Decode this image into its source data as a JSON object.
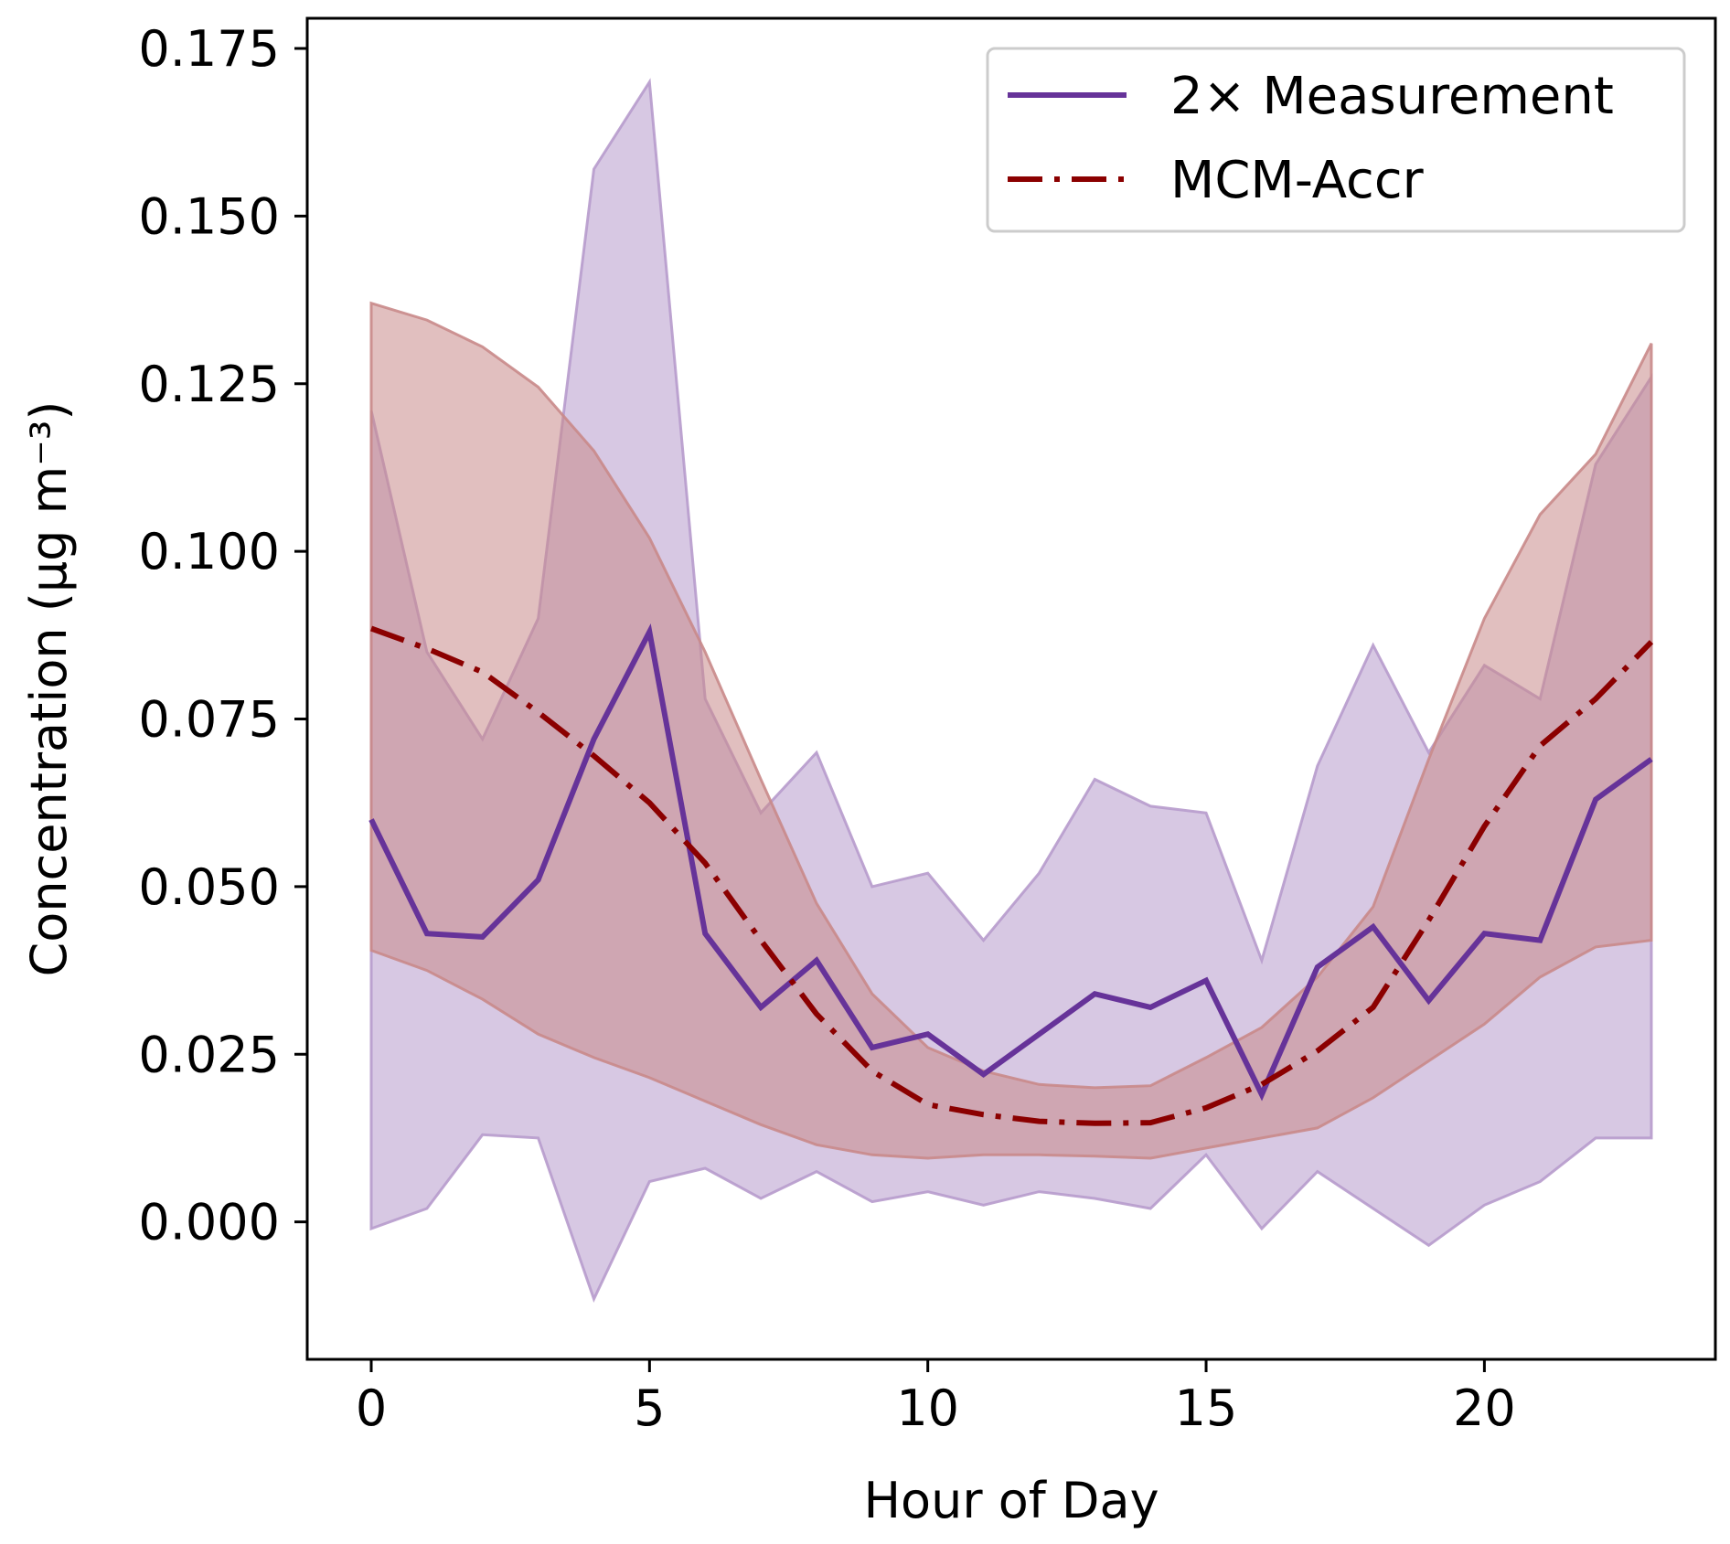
{
  "chart_data": {
    "type": "line",
    "title": "",
    "xlabel": "Hour of Day",
    "ylabel": "Concentration (μg m⁻³)",
    "xlim": [
      -1.15,
      24.15
    ],
    "ylim": [
      -0.0205,
      0.1795
    ],
    "xticks": [
      0,
      5,
      10,
      15,
      20
    ],
    "xtick_labels": [
      "0",
      "5",
      "10",
      "15",
      "20"
    ],
    "yticks": [
      0.0,
      0.025,
      0.05,
      0.075,
      0.1,
      0.125,
      0.15,
      0.175
    ],
    "ytick_labels": [
      "0.000",
      "0.025",
      "0.050",
      "0.075",
      "0.100",
      "0.125",
      "0.150",
      "0.175"
    ],
    "grid": false,
    "legend_position": "top-right",
    "x": [
      0,
      1,
      2,
      3,
      4,
      5,
      6,
      7,
      8,
      9,
      10,
      11,
      12,
      13,
      14,
      15,
      16,
      17,
      18,
      19,
      20,
      21,
      22,
      23
    ],
    "series": [
      {
        "name": "2× Measurement",
        "color": "#663399",
        "band_color": "#b79bcc",
        "line_style": "solid",
        "values": [
          0.06,
          0.043,
          0.0425,
          0.051,
          0.072,
          0.088,
          0.043,
          0.032,
          0.039,
          0.026,
          0.028,
          0.022,
          0.028,
          0.034,
          0.032,
          0.036,
          0.019,
          0.038,
          0.044,
          0.033,
          0.043,
          0.042,
          0.063,
          0.069
        ],
        "lower": [
          -0.001,
          0.002,
          0.013,
          0.0125,
          -0.0115,
          0.006,
          0.008,
          0.0035,
          0.0075,
          0.003,
          0.0045,
          0.0025,
          0.0045,
          0.0035,
          0.002,
          0.01,
          -0.001,
          0.0075,
          0.002,
          -0.0035,
          0.0025,
          0.006,
          0.0125,
          0.0125
        ],
        "upper": [
          0.121,
          0.085,
          0.072,
          0.09,
          0.157,
          0.17,
          0.078,
          0.061,
          0.07,
          0.05,
          0.052,
          0.042,
          0.052,
          0.066,
          0.062,
          0.061,
          0.039,
          0.068,
          0.086,
          0.07,
          0.083,
          0.078,
          0.113,
          0.126
        ]
      },
      {
        "name": "MCM-Accr",
        "color": "#8b0000",
        "band_color": "#c98a8a",
        "line_style": "dashdot",
        "values": [
          0.0885,
          0.0855,
          0.082,
          0.076,
          0.0695,
          0.0625,
          0.0535,
          0.042,
          0.031,
          0.0225,
          0.0175,
          0.016,
          0.015,
          0.0147,
          0.0148,
          0.017,
          0.0205,
          0.0255,
          0.032,
          0.045,
          0.059,
          0.071,
          0.078,
          0.0865
        ],
        "lower": [
          0.0405,
          0.0375,
          0.0332,
          0.028,
          0.0245,
          0.0215,
          0.018,
          0.0145,
          0.0115,
          0.01,
          0.0095,
          0.01,
          0.01,
          0.0098,
          0.0095,
          0.011,
          0.0125,
          0.014,
          0.0185,
          0.024,
          0.0295,
          0.0365,
          0.041,
          0.042
        ],
        "upper": [
          0.137,
          0.1345,
          0.1305,
          0.1245,
          0.115,
          0.102,
          0.085,
          0.066,
          0.0475,
          0.034,
          0.026,
          0.0225,
          0.0205,
          0.02,
          0.0203,
          0.0245,
          0.029,
          0.0365,
          0.047,
          0.069,
          0.09,
          0.1055,
          0.1145,
          0.131
        ]
      }
    ]
  }
}
